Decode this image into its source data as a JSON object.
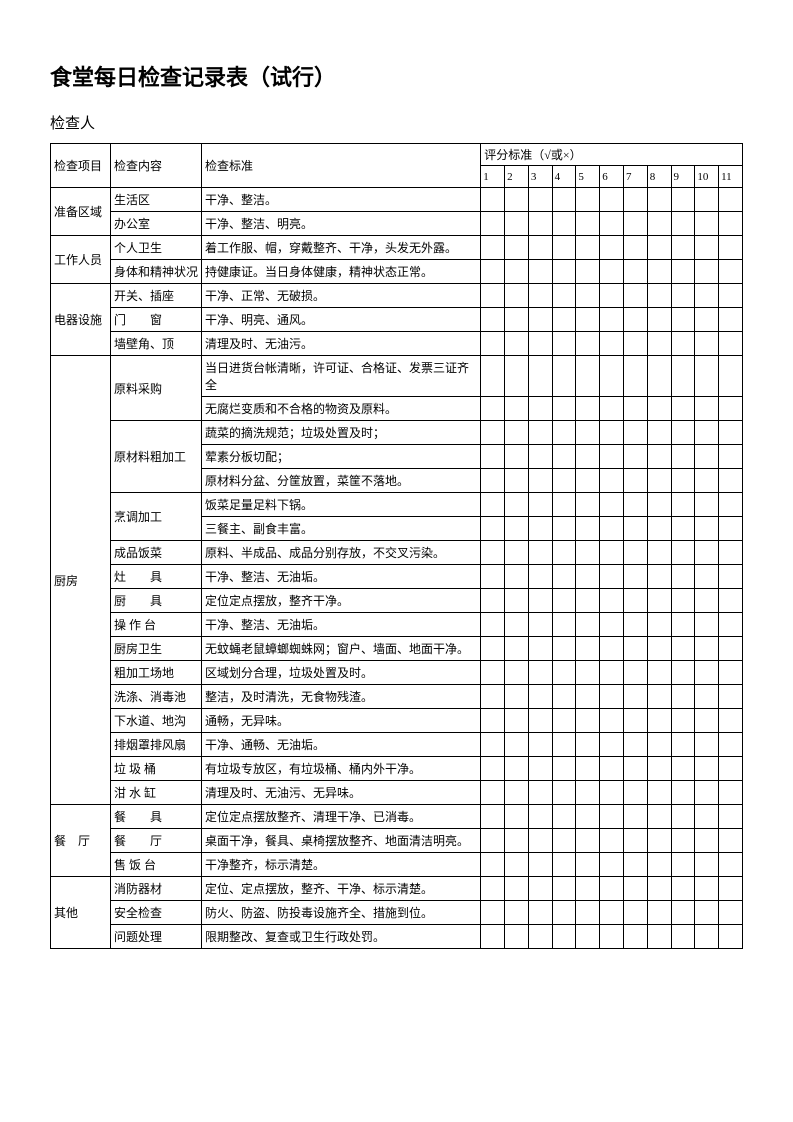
{
  "title": "食堂每日检查记录表（试行）",
  "inspector_label": "检查人",
  "headers": {
    "category": "检查项目",
    "item": "检查内容",
    "standard": "检查标准",
    "score_header": "评分标准（√或×）"
  },
  "score_numbers": [
    "1",
    "2",
    "3",
    "4",
    "5",
    "6",
    "7",
    "8",
    "9",
    "10",
    "11"
  ],
  "sections": {
    "s1": {
      "name": "准备区域",
      "r1_item": "生活区",
      "r1_std": "干净、整洁。",
      "r2_item": "办公室",
      "r2_std": "干净、整洁、明亮。"
    },
    "s2": {
      "name": "工作人员",
      "r1_item": "个人卫生",
      "r1_std": "着工作服、帽，穿戴整齐、干净，头发无外露。",
      "r2_item": "身体和精神状况",
      "r2_std": "持健康证。当日身体健康，精神状态正常。"
    },
    "s3": {
      "name": "电器设施",
      "r1_item": "开关、插座",
      "r1_std": "干净、正常、无破损。",
      "r2_item": "门　　窗",
      "r2_std": "干净、明亮、通风。",
      "r3_item": "墙壁角、顶",
      "r3_std": "清理及时、无油污。"
    },
    "s4": {
      "name": "厨房",
      "r1_item": "原料采购",
      "r1_std": "当日进货台帐清晰，许可证、合格证、发票三证齐全",
      "r2_std": "无腐烂变质和不合格的物资及原料。",
      "r3_item": "原材料粗加工",
      "r3_std": "蔬菜的摘洗规范；垃圾处置及时；",
      "r4_std": "荤素分板切配；",
      "r5_std": "原材料分盆、分筐放置，菜筐不落地。",
      "r6_item": "烹调加工",
      "r6_std": "饭菜足量足料下锅。",
      "r7_std": "三餐主、副食丰富。",
      "r8_item": "成品饭菜",
      "r8_std": "原料、半成品、成品分别存放，不交叉污染。",
      "r9_item": "灶　　具",
      "r9_std": "干净、整洁、无油垢。",
      "r10_item": "厨　　具",
      "r10_std": "定位定点摆放，整齐干净。",
      "r11_item": "操 作 台",
      "r11_std": "干净、整洁、无油垢。",
      "r12_item": "厨房卫生",
      "r12_std": "无蚊蝇老鼠蟑螂蜘蛛网；窗户、墙面、地面干净。",
      "r13_item": "粗加工场地",
      "r13_std": "区域划分合理，垃圾处置及时。",
      "r14_item": "洗涤、消毒池",
      "r14_std": "整洁，及时清洗，无食物残渣。",
      "r15_item": "下水道、地沟",
      "r15_std": "通畅，无异味。",
      "r16_item": "排烟罩排风扇",
      "r16_std": "干净、通畅、无油垢。",
      "r17_item": "垃 圾 桶",
      "r17_std": "有垃圾专放区，有垃圾桶、桶内外干净。",
      "r18_item": "泔 水 缸",
      "r18_std": "清理及时、无油污、无异味。"
    },
    "s5": {
      "name": "餐　厅",
      "r1_item": "餐　　具",
      "r1_std": "定位定点摆放整齐、清理干净、已消毒。",
      "r2_item": "餐　　厅",
      "r2_std": "桌面干净，餐具、桌椅摆放整齐、地面清洁明亮。",
      "r3_item": "售 饭 台",
      "r3_std": "干净整齐，标示清楚。"
    },
    "s6": {
      "name": "其他",
      "r1_item": "消防器材",
      "r1_std": "定位、定点摆放，整齐、干净、标示清楚。",
      "r2_item": "安全检查",
      "r2_std": "防火、防盗、防投毒设施齐全、措施到位。",
      "r3_item": "问题处理",
      "r3_std": "限期整改、复查或卫生行政处罚。"
    }
  }
}
